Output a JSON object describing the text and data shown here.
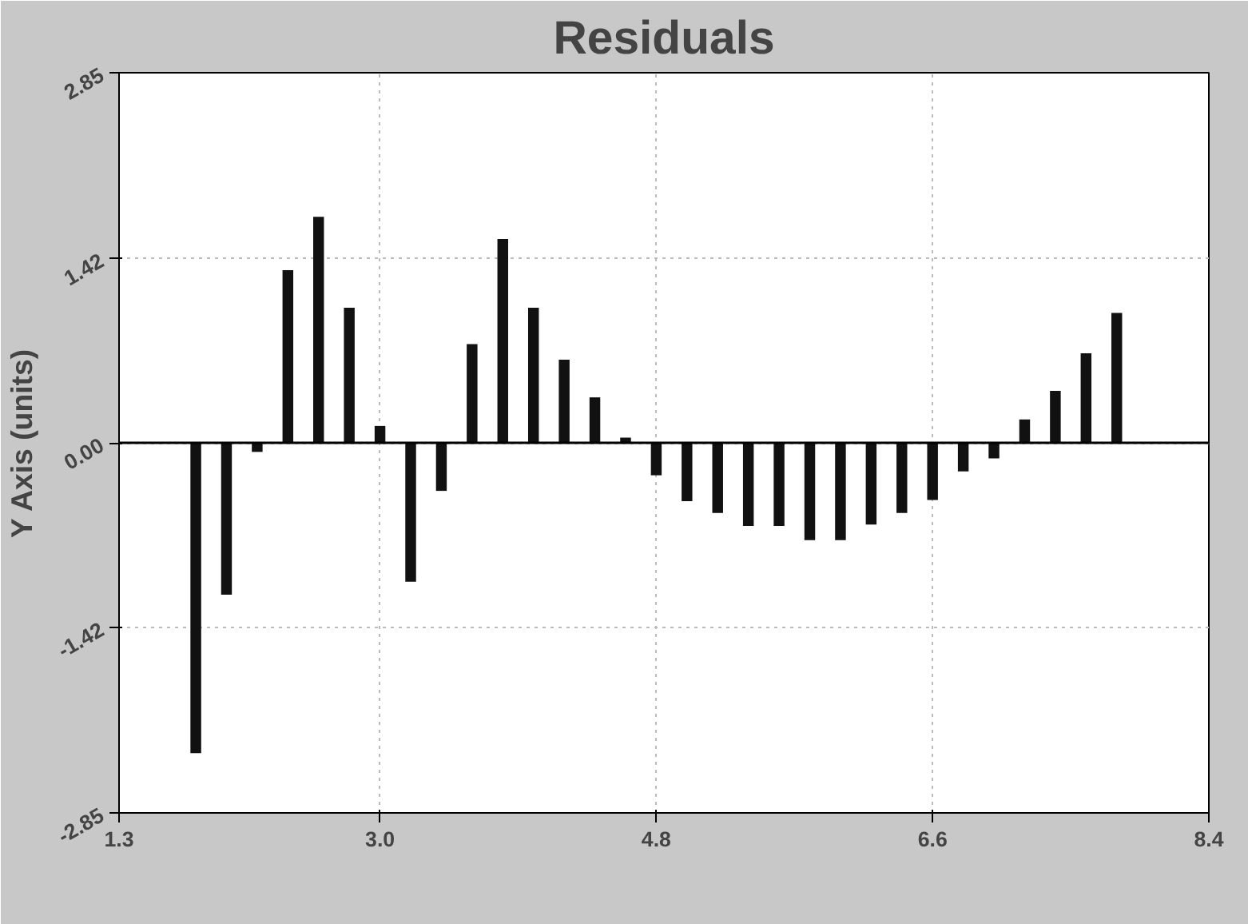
{
  "chart_data": {
    "type": "bar",
    "title": "Residuals",
    "ylabel": "Y Axis (units)",
    "x": [
      1.8,
      2.0,
      2.2,
      2.4,
      2.6,
      2.8,
      3.0,
      3.2,
      3.4,
      3.6,
      3.8,
      4.0,
      4.2,
      4.4,
      4.6,
      4.8,
      5.0,
      5.2,
      5.4,
      5.6,
      5.8,
      6.0,
      6.2,
      6.4,
      6.6,
      6.8,
      7.0,
      7.2,
      7.4,
      7.6,
      7.8
    ],
    "values": [
      -2.39,
      -1.17,
      -0.07,
      1.33,
      1.74,
      1.04,
      0.13,
      -1.07,
      -0.37,
      0.76,
      1.57,
      1.04,
      0.64,
      0.35,
      0.04,
      -0.25,
      -0.45,
      -0.54,
      -0.64,
      -0.64,
      -0.75,
      -0.75,
      -0.63,
      -0.54,
      -0.44,
      -0.22,
      -0.12,
      0.18,
      0.4,
      0.69,
      1.0
    ],
    "color": "#111111",
    "xlim": [
      1.3,
      8.4
    ],
    "ylim": [
      -2.85,
      2.85
    ],
    "xticks": [
      1.3,
      {
        "value": 3.0,
        "label": "3.0"
      },
      4.8,
      6.6,
      8.4
    ],
    "yticks": [
      {
        "value": -2.85,
        "label": "-2.85"
      },
      {
        "value": -1.42,
        "label": "-1.42"
      },
      {
        "value": 0,
        "label": "0.00"
      },
      {
        "value": 1.42,
        "label": "1.42"
      },
      {
        "value": 2.85,
        "label": "2.85"
      }
    ],
    "grid": true,
    "ref_lines": [
      {
        "axis": "y",
        "value": 0,
        "color": "#000000",
        "line_style": "solid"
      }
    ]
  }
}
